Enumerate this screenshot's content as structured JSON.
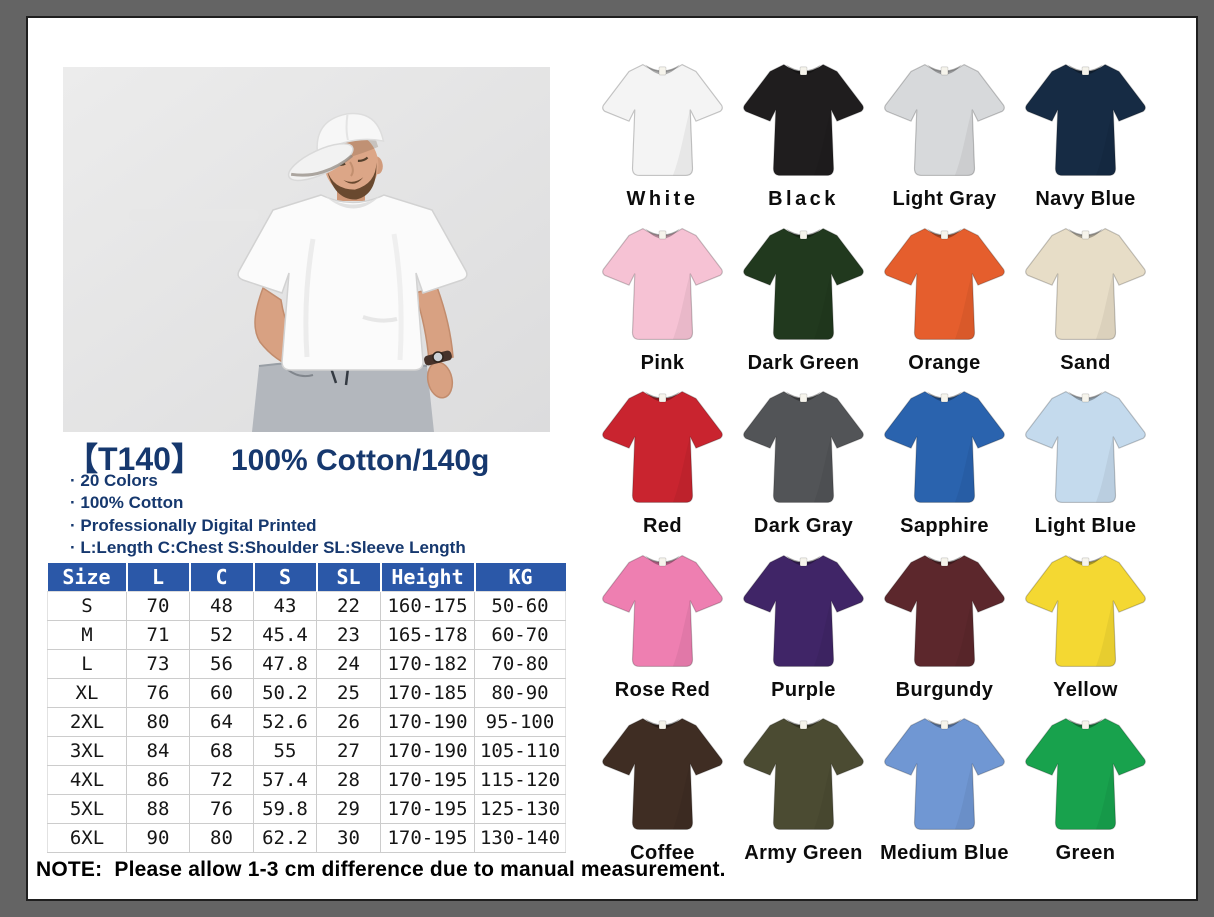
{
  "product": {
    "code": "【T140】",
    "title": "100% Cotton/140g",
    "bullets": [
      "· 20 Colors",
      "· 100% Cotton",
      "· Professionally Digital Printed",
      "· L:Length C:Chest S:Shoulder SL:Sleeve Length"
    ]
  },
  "size_table": {
    "headers": [
      "Size",
      "L",
      "C",
      "S",
      "SL",
      "Height",
      "KG"
    ],
    "rows": [
      [
        "S",
        "70",
        "48",
        "43",
        "22",
        "160-175",
        "50-60"
      ],
      [
        "M",
        "71",
        "52",
        "45.4",
        "23",
        "165-178",
        "60-70"
      ],
      [
        "L",
        "73",
        "56",
        "47.8",
        "24",
        "170-182",
        "70-80"
      ],
      [
        "XL",
        "76",
        "60",
        "50.2",
        "25",
        "170-185",
        "80-90"
      ],
      [
        "2XL",
        "80",
        "64",
        "52.6",
        "26",
        "170-190",
        "95-100"
      ],
      [
        "3XL",
        "84",
        "68",
        "55",
        "27",
        "170-190",
        "105-110"
      ],
      [
        "4XL",
        "86",
        "72",
        "57.4",
        "28",
        "170-195",
        "115-120"
      ],
      [
        "5XL",
        "88",
        "76",
        "59.8",
        "29",
        "170-195",
        "125-130"
      ],
      [
        "6XL",
        "90",
        "80",
        "62.2",
        "30",
        "170-195",
        "130-140"
      ]
    ]
  },
  "note": "NOTE:  Please allow 1-3 cm difference due to manual measurement.",
  "colors": [
    {
      "label": "White",
      "hex": "#f4f4f4"
    },
    {
      "label": "Black",
      "hex": "#1f1d1e"
    },
    {
      "label": "Light Gray",
      "hex": "#d7d9db"
    },
    {
      "label": "Navy Blue",
      "hex": "#162b44"
    },
    {
      "label": "Pink",
      "hex": "#f6c2d4"
    },
    {
      "label": "Dark Green",
      "hex": "#21391e"
    },
    {
      "label": "Orange",
      "hex": "#e55e2d"
    },
    {
      "label": "Sand",
      "hex": "#e7ddc7"
    },
    {
      "label": "Red",
      "hex": "#c9242f"
    },
    {
      "label": "Dark Gray",
      "hex": "#525457"
    },
    {
      "label": "Sapphire",
      "hex": "#2a63ae"
    },
    {
      "label": "Light Blue",
      "hex": "#c4daed"
    },
    {
      "label": "Rose Red",
      "hex": "#ee7fb1"
    },
    {
      "label": "Purple",
      "hex": "#402567"
    },
    {
      "label": "Burgundy",
      "hex": "#5c272c"
    },
    {
      "label": "Yellow",
      "hex": "#f4d832"
    },
    {
      "label": "Coffee",
      "hex": "#3f2d23"
    },
    {
      "label": "Army Green",
      "hex": "#4b4b32"
    },
    {
      "label": "Medium Blue",
      "hex": "#7097d3"
    },
    {
      "label": "Green",
      "hex": "#18a24d"
    }
  ],
  "theme": {
    "accent_navy": "#16386e",
    "table_header_bg": "#2b58a8",
    "table_header_text": "#ffffff",
    "frame_gray": "#646464",
    "photo_bg": "#e6e6e7"
  }
}
